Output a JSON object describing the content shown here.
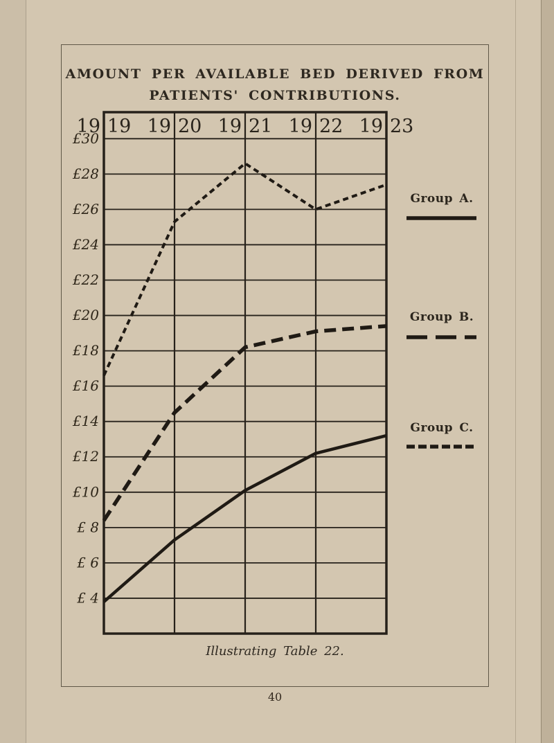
{
  "page": {
    "title_line1": "AMOUNT PER AVAILABLE BED DERIVED FROM",
    "title_line2": "PATIENTS' CONTRIBUTIONS.",
    "caption": "Illustrating Table 22.",
    "page_number": "40"
  },
  "legend": [
    {
      "label": "Group A.",
      "style": "solid"
    },
    {
      "label": "Group B.",
      "style": "long-dash"
    },
    {
      "label": "Group C.",
      "style": "short-dash"
    }
  ],
  "colors": {
    "paper": "#d3c6b0",
    "ink": "#26211a",
    "line_ink": "#1f1a14"
  },
  "chart_data": {
    "type": "line",
    "title": "Amount per available bed derived from patients' contributions",
    "currency": "£",
    "x": [
      1919,
      1920,
      1921,
      1922,
      1923
    ],
    "x_tick_labels": [
      [
        "19",
        "19"
      ],
      [
        "19",
        "20"
      ],
      [
        "19",
        "21"
      ],
      [
        "19",
        "22"
      ],
      [
        "19",
        "23"
      ]
    ],
    "y_ticks": [
      30,
      28,
      26,
      24,
      22,
      20,
      18,
      16,
      14,
      12,
      10,
      8,
      6,
      4
    ],
    "y_tick_labels": [
      "£30",
      "£28",
      "£26",
      "£24",
      "£22",
      "£20",
      "£18",
      "£16",
      "£14",
      "£12",
      "£10",
      "£ 8",
      "£ 6",
      "£ 4"
    ],
    "ylim": [
      2,
      31.5
    ],
    "grid": true,
    "legend_position": "right",
    "series": [
      {
        "name": "Group A.",
        "dash": "solid",
        "values": [
          3.8,
          7.3,
          10.1,
          12.2,
          13.2
        ]
      },
      {
        "name": "Group B.",
        "dash": "long-dash",
        "values": [
          8.4,
          14.5,
          18.2,
          19.1,
          19.4
        ]
      },
      {
        "name": "Group C.",
        "dash": "short-dash",
        "values": [
          16.6,
          25.3,
          28.6,
          26.0,
          27.4
        ]
      }
    ]
  }
}
